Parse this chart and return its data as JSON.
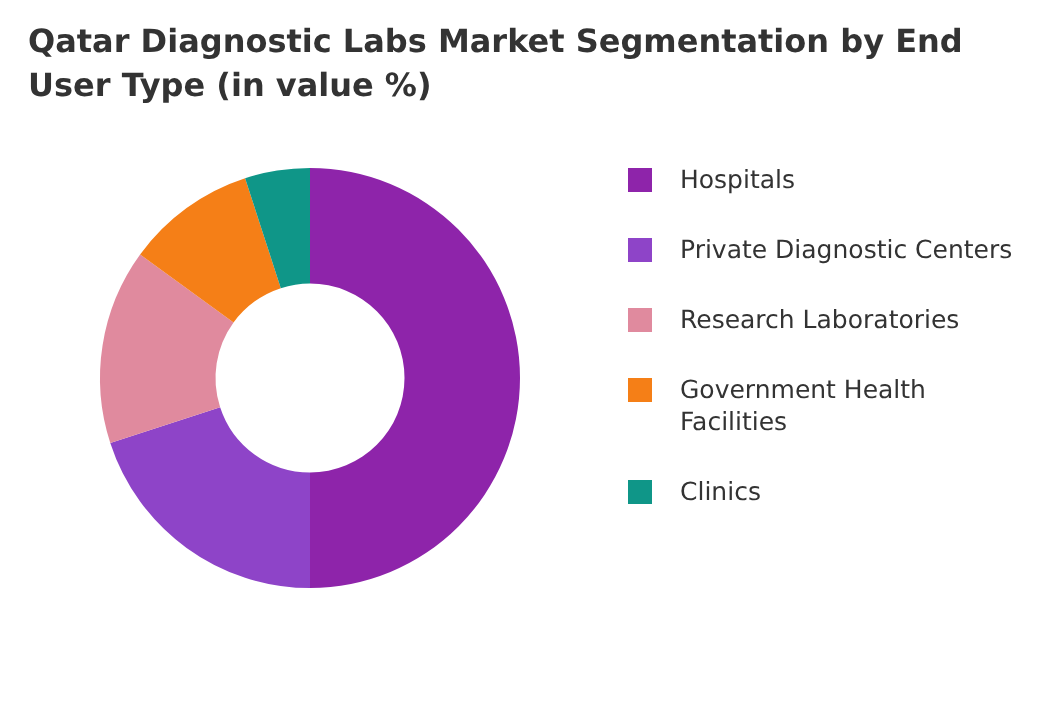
{
  "chart_data": {
    "type": "donut",
    "title": "Qatar Diagnostic Labs Market Segmentation by End User Type (in value %)",
    "categories": [
      "Hospitals",
      "Private Diagnostic Centers",
      "Research Laboratories",
      "Government Health Facilities",
      "Clinics"
    ],
    "values": [
      50,
      20,
      15,
      10,
      5
    ],
    "colors": [
      "#8e24aa",
      "#8e44c8",
      "#e08a9e",
      "#f57f17",
      "#0f9688"
    ],
    "legend": "right"
  }
}
